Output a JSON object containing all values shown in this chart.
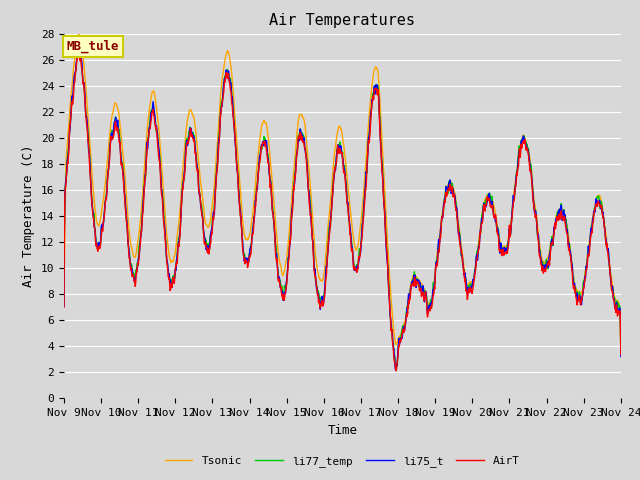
{
  "title": "Air Temperatures",
  "xlabel": "Time",
  "ylabel": "Air Temperature (C)",
  "ylim": [
    0,
    28
  ],
  "xlim": [
    0,
    15
  ],
  "x_tick_labels": [
    "Nov 9",
    "Nov 10",
    "Nov 11",
    "Nov 12",
    "Nov 13",
    "Nov 14",
    "Nov 15",
    "Nov 16",
    "Nov 17",
    "Nov 18",
    "Nov 19",
    "Nov 20",
    "Nov 21",
    "Nov 22",
    "Nov 23",
    "Nov 24"
  ],
  "annotation_text": "MB_tule",
  "annotation_color": "#8B0000",
  "annotation_bg": "#FFFFC0",
  "annotation_border": "#CCCC00",
  "series_colors": [
    "#FF0000",
    "#0000FF",
    "#00CC00",
    "#FFA500"
  ],
  "series_labels": [
    "AirT",
    "li75_t",
    "li77_temp",
    "Tsonic"
  ],
  "series_linewidths": [
    1.0,
    1.0,
    1.0,
    1.0
  ],
  "bg_color": "#D8D8D8",
  "plot_bg_color": "#D8D8D8",
  "grid_color": "#FFFFFF",
  "title_fontsize": 11,
  "axis_label_fontsize": 9,
  "tick_fontsize": 8
}
